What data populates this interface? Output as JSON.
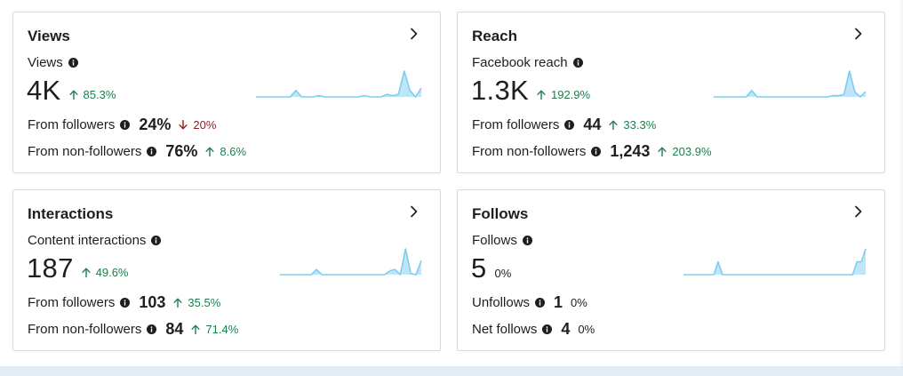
{
  "cards": [
    {
      "title": "Views",
      "metric_label": "Views",
      "value": "4K",
      "change": "85.3%",
      "change_direction": "up",
      "rows": [
        {
          "label": "From followers",
          "value": "24%",
          "change": "20%",
          "change_direction": "down"
        },
        {
          "label": "From non-followers",
          "value": "76%",
          "change": "8.6%",
          "change_direction": "up"
        }
      ],
      "sparkline": [
        0.0,
        0.0,
        0.0,
        0.0,
        0.0,
        0.0,
        0.0,
        0.25,
        0.0,
        0.0,
        0.0,
        0.05,
        0.0,
        0.0,
        0.0,
        0.0,
        0.0,
        0.0,
        0.0,
        0.05,
        0.0,
        0.0,
        0.0,
        0.1,
        0.05,
        0.1,
        1.0,
        0.25,
        0.0,
        0.35
      ]
    },
    {
      "title": "Reach",
      "metric_label": "Facebook reach",
      "value": "1.3K",
      "change": "192.9%",
      "change_direction": "up",
      "rows": [
        {
          "label": "From followers",
          "value": "44",
          "change": "33.3%",
          "change_direction": "up"
        },
        {
          "label": "From non-followers",
          "value": "1,243",
          "change": "203.9%",
          "change_direction": "up"
        }
      ],
      "sparkline": [
        0.0,
        0.0,
        0.0,
        0.0,
        0.0,
        0.0,
        0.0,
        0.25,
        0.0,
        0.0,
        0.0,
        0.0,
        0.0,
        0.0,
        0.0,
        0.0,
        0.0,
        0.0,
        0.0,
        0.0,
        0.0,
        0.0,
        0.05,
        0.05,
        0.1,
        1.0,
        0.2,
        0.0,
        0.2
      ]
    },
    {
      "title": "Interactions",
      "metric_label": "Content interactions",
      "value": "187",
      "change": "49.6%",
      "change_direction": "up",
      "rows": [
        {
          "label": "From followers",
          "value": "103",
          "change": "35.5%",
          "change_direction": "up"
        },
        {
          "label": "From non-followers",
          "value": "84",
          "change": "71.4%",
          "change_direction": "up"
        }
      ],
      "sparkline": [
        0.0,
        0.0,
        0.0,
        0.0,
        0.0,
        0.0,
        0.0,
        0.2,
        0.0,
        0.0,
        0.0,
        0.0,
        0.0,
        0.0,
        0.0,
        0.0,
        0.0,
        0.0,
        0.0,
        0.0,
        0.0,
        0.15,
        0.2,
        0.0,
        1.0,
        0.05,
        0.0,
        0.55
      ]
    },
    {
      "title": "Follows",
      "metric_label": "Follows",
      "value": "5",
      "change": "0%",
      "change_direction": "flat",
      "rows": [
        {
          "label": "Unfollows",
          "value": "1",
          "change": "0%",
          "change_direction": "flat"
        },
        {
          "label": "Net follows",
          "value": "4",
          "change": "0%",
          "change_direction": "flat"
        }
      ],
      "sparkline": [
        0.0,
        0.0,
        0.0,
        0.0,
        0.0,
        0.0,
        0.0,
        0.0,
        0.5,
        0.0,
        0.0,
        0.0,
        0.0,
        0.0,
        0.0,
        0.0,
        0.0,
        0.0,
        0.0,
        0.0,
        0.0,
        0.0,
        0.0,
        0.0,
        0.0,
        0.0,
        0.0,
        0.0,
        0.0,
        0.0,
        0.0,
        0.0,
        0.0,
        0.0,
        0.0,
        0.0,
        0.0,
        0.0,
        0.0,
        0.0,
        0.5,
        0.5,
        1.0
      ]
    }
  ],
  "colors": {
    "spark_line": "#7fcdee",
    "spark_fill": "#bfe6f8",
    "up": "#1e7d4f",
    "down": "#8a1f1f",
    "text": "#1c1e21",
    "border": "#d6d9dd"
  },
  "icons": {
    "info": "info-icon",
    "chevron": "chevron-right-icon",
    "up": "arrow-up-icon",
    "down": "arrow-down-icon"
  }
}
